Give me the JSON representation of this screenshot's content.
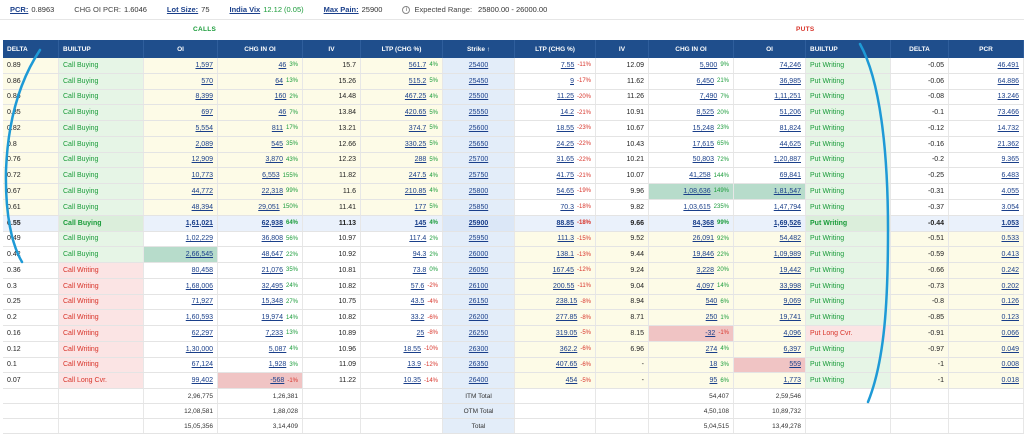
{
  "topbar": {
    "pcr_label": "PCR:",
    "pcr_value": "0.8963",
    "chg_oi_pcr_label": "CHG OI PCR:",
    "chg_oi_pcr_value": "1.6046",
    "lot_size_label": "Lot Size:",
    "lot_size_value": "75",
    "india_vix_label": "India Vix",
    "india_vix_value": "12.12",
    "india_vix_change": "(0.05)",
    "max_pain_label": "Max Pain:",
    "max_pain_value": "25900",
    "expected_range_label": "Expected Range:",
    "expected_range_value": "25800.00 - 26000.00"
  },
  "section_labels": {
    "calls": "CALLS",
    "puts": "PUTS"
  },
  "headers": {
    "delta": "DELTA",
    "builtup": "BUILTUP",
    "oi": "OI",
    "chg_in_oi": "CHG IN OI",
    "iv": "IV",
    "ltp": "LTP (CHG %)",
    "strike": "Strike ↑",
    "put_ltp": "LTP (CHG %)",
    "put_iv": "IV",
    "put_chg_in_oi": "CHG IN OI",
    "put_oi": "OI",
    "put_builtup": "BUILTUP",
    "put_delta": "DELTA",
    "pcr": "PCR"
  },
  "rows": [
    {
      "c_delta": "0.89",
      "c_build": "Call Buying",
      "c_oi": "1,597",
      "c_chg": "46",
      "c_chg_pct": "3%",
      "c_iv": "15.7",
      "c_ltp": "561.7",
      "c_ltp_pct": "4%",
      "strike": "25400",
      "p_ltp": "7.55",
      "p_ltp_pct": "-11%",
      "p_iv": "12.09",
      "p_chg": "5,900",
      "p_chg_pct": "9%",
      "p_oi": "74,246",
      "p_build": "Put Writing",
      "p_delta": "-0.05",
      "pcr": "46.491"
    },
    {
      "c_delta": "0.86",
      "c_build": "Call Buying",
      "c_oi": "570",
      "c_chg": "64",
      "c_chg_pct": "13%",
      "c_iv": "15.26",
      "c_ltp": "515.2",
      "c_ltp_pct": "5%",
      "strike": "25450",
      "p_ltp": "9",
      "p_ltp_pct": "-17%",
      "p_iv": "11.62",
      "p_chg": "6,450",
      "p_chg_pct": "21%",
      "p_oi": "36,985",
      "p_build": "Put Writing",
      "p_delta": "-0.06",
      "pcr": "64.886"
    },
    {
      "c_delta": "0.86",
      "c_build": "Call Buying",
      "c_oi": "8,399",
      "c_chg": "160",
      "c_chg_pct": "2%",
      "c_iv": "14.48",
      "c_ltp": "467.25",
      "c_ltp_pct": "4%",
      "strike": "25500",
      "p_ltp": "11.25",
      "p_ltp_pct": "-20%",
      "p_iv": "11.26",
      "p_chg": "7,490",
      "p_chg_pct": "7%",
      "p_oi": "1,11,251",
      "p_build": "Put Writing",
      "p_delta": "-0.08",
      "pcr": "13.246"
    },
    {
      "c_delta": "0.85",
      "c_build": "Call Buying",
      "c_oi": "697",
      "c_chg": "46",
      "c_chg_pct": "7%",
      "c_iv": "13.84",
      "c_ltp": "420.65",
      "c_ltp_pct": "5%",
      "strike": "25550",
      "p_ltp": "14.2",
      "p_ltp_pct": "-21%",
      "p_iv": "10.91",
      "p_chg": "8,525",
      "p_chg_pct": "20%",
      "p_oi": "51,206",
      "p_build": "Put Writing",
      "p_delta": "-0.1",
      "pcr": "73.466"
    },
    {
      "c_delta": "0.82",
      "c_build": "Call Buying",
      "c_oi": "5,554",
      "c_chg": "811",
      "c_chg_pct": "17%",
      "c_iv": "13.21",
      "c_ltp": "374.7",
      "c_ltp_pct": "5%",
      "strike": "25600",
      "p_ltp": "18.55",
      "p_ltp_pct": "-23%",
      "p_iv": "10.67",
      "p_chg": "15,248",
      "p_chg_pct": "23%",
      "p_oi": "81,824",
      "p_build": "Put Writing",
      "p_delta": "-0.12",
      "pcr": "14.732"
    },
    {
      "c_delta": "0.8",
      "c_build": "Call Buying",
      "c_oi": "2,089",
      "c_chg": "545",
      "c_chg_pct": "35%",
      "c_iv": "12.66",
      "c_ltp": "330.25",
      "c_ltp_pct": "5%",
      "strike": "25650",
      "p_ltp": "24.25",
      "p_ltp_pct": "-22%",
      "p_iv": "10.43",
      "p_chg": "17,615",
      "p_chg_pct": "65%",
      "p_oi": "44,625",
      "p_build": "Put Writing",
      "p_delta": "-0.16",
      "pcr": "21.362"
    },
    {
      "c_delta": "0.76",
      "c_build": "Call Buying",
      "c_oi": "12,909",
      "c_chg": "3,870",
      "c_chg_pct": "43%",
      "c_iv": "12.23",
      "c_ltp": "288",
      "c_ltp_pct": "5%",
      "strike": "25700",
      "p_ltp": "31.65",
      "p_ltp_pct": "-22%",
      "p_iv": "10.21",
      "p_chg": "50,803",
      "p_chg_pct": "72%",
      "p_oi": "1,20,887",
      "p_build": "Put Writing",
      "p_delta": "-0.2",
      "pcr": "9.365"
    },
    {
      "c_delta": "0.72",
      "c_build": "Call Buying",
      "c_oi": "10,773",
      "c_chg": "6,553",
      "c_chg_pct": "155%",
      "c_iv": "11.82",
      "c_ltp": "247.5",
      "c_ltp_pct": "4%",
      "strike": "25750",
      "p_ltp": "41.75",
      "p_ltp_pct": "-21%",
      "p_iv": "10.07",
      "p_chg": "41,258",
      "p_chg_pct": "144%",
      "p_oi": "69,841",
      "p_build": "Put Writing",
      "p_delta": "-0.25",
      "pcr": "6.483"
    },
    {
      "c_delta": "0.67",
      "c_build": "Call Buying",
      "c_oi": "44,772",
      "c_chg": "22,318",
      "c_chg_pct": "99%",
      "c_iv": "11.6",
      "c_ltp": "210.85",
      "c_ltp_pct": "4%",
      "strike": "25800",
      "p_ltp": "54.65",
      "p_ltp_pct": "-19%",
      "p_iv": "9.96",
      "p_chg": "1,08,636",
      "p_chg_pct": "149%",
      "p_oi": "1,81,547",
      "p_build": "Put Writing",
      "p_delta": "-0.31",
      "pcr": "4.055",
      "p_chg_hl": "green",
      "p_oi_hl": "green"
    },
    {
      "c_delta": "0.61",
      "c_build": "Call Buying",
      "c_oi": "48,394",
      "c_chg": "29,051",
      "c_chg_pct": "150%",
      "c_iv": "11.41",
      "c_ltp": "177",
      "c_ltp_pct": "5%",
      "strike": "25850",
      "p_ltp": "70.3",
      "p_ltp_pct": "-18%",
      "p_iv": "9.82",
      "p_chg": "1,03,615",
      "p_chg_pct": "235%",
      "p_oi": "1,47,794",
      "p_build": "Put Writing",
      "p_delta": "-0.37",
      "pcr": "3.054"
    },
    {
      "c_delta": "0.55",
      "c_build": "Call Buying",
      "c_oi": "1,61,021",
      "c_chg": "62,938",
      "c_chg_pct": "64%",
      "c_iv": "11.13",
      "c_ltp": "145",
      "c_ltp_pct": "4%",
      "strike": "25900",
      "p_ltp": "88.85",
      "p_ltp_pct": "-18%",
      "p_iv": "9.66",
      "p_chg": "84,368",
      "p_chg_pct": "99%",
      "p_oi": "1,69,526",
      "p_build": "Put Writing",
      "p_delta": "-0.44",
      "pcr": "1.053",
      "atm": true
    },
    {
      "c_delta": "0.49",
      "c_build": "Call Buying",
      "c_oi": "1,02,229",
      "c_chg": "36,808",
      "c_chg_pct": "56%",
      "c_iv": "10.97",
      "c_ltp": "117.4",
      "c_ltp_pct": "2%",
      "strike": "25950",
      "p_ltp": "111.3",
      "p_ltp_pct": "-15%",
      "p_iv": "9.52",
      "p_chg": "26,091",
      "p_chg_pct": "92%",
      "p_oi": "54,482",
      "p_build": "Put Writing",
      "p_delta": "-0.51",
      "pcr": "0.533"
    },
    {
      "c_delta": "0.42",
      "c_build": "Call Buying",
      "c_oi": "2,66,545",
      "c_chg": "48,647",
      "c_chg_pct": "22%",
      "c_iv": "10.92",
      "c_ltp": "94.3",
      "c_ltp_pct": "2%",
      "strike": "26000",
      "p_ltp": "138.1",
      "p_ltp_pct": "-13%",
      "p_iv": "9.44",
      "p_chg": "19,846",
      "p_chg_pct": "22%",
      "p_oi": "1,09,989",
      "p_build": "Put Writing",
      "p_delta": "-0.59",
      "pcr": "0.413",
      "c_oi_hl": "green"
    },
    {
      "c_delta": "0.36",
      "c_build": "Call Writing",
      "c_oi": "80,458",
      "c_chg": "21,076",
      "c_chg_pct": "35%",
      "c_iv": "10.81",
      "c_ltp": "73.8",
      "c_ltp_pct": "0%",
      "strike": "26050",
      "p_ltp": "167.45",
      "p_ltp_pct": "-12%",
      "p_iv": "9.24",
      "p_chg": "3,228",
      "p_chg_pct": "20%",
      "p_oi": "19,442",
      "p_build": "Put Writing",
      "p_delta": "-0.66",
      "pcr": "0.242"
    },
    {
      "c_delta": "0.3",
      "c_build": "Call Writing",
      "c_oi": "1,68,006",
      "c_chg": "32,495",
      "c_chg_pct": "24%",
      "c_iv": "10.82",
      "c_ltp": "57.6",
      "c_ltp_pct": "-2%",
      "strike": "26100",
      "p_ltp": "200.55",
      "p_ltp_pct": "-11%",
      "p_iv": "9.04",
      "p_chg": "4,097",
      "p_chg_pct": "14%",
      "p_oi": "33,998",
      "p_build": "Put Writing",
      "p_delta": "-0.73",
      "pcr": "0.202"
    },
    {
      "c_delta": "0.25",
      "c_build": "Call Writing",
      "c_oi": "71,927",
      "c_chg": "15,348",
      "c_chg_pct": "27%",
      "c_iv": "10.75",
      "c_ltp": "43.5",
      "c_ltp_pct": "-4%",
      "strike": "26150",
      "p_ltp": "238.15",
      "p_ltp_pct": "-8%",
      "p_iv": "8.94",
      "p_chg": "540",
      "p_chg_pct": "6%",
      "p_oi": "9,069",
      "p_build": "Put Writing",
      "p_delta": "-0.8",
      "pcr": "0.126"
    },
    {
      "c_delta": "0.2",
      "c_build": "Call Writing",
      "c_oi": "1,60,593",
      "c_chg": "19,974",
      "c_chg_pct": "14%",
      "c_iv": "10.82",
      "c_ltp": "33.2",
      "c_ltp_pct": "-6%",
      "strike": "26200",
      "p_ltp": "277.85",
      "p_ltp_pct": "-8%",
      "p_iv": "8.71",
      "p_chg": "250",
      "p_chg_pct": "1%",
      "p_oi": "19,741",
      "p_build": "Put Writing",
      "p_delta": "-0.85",
      "pcr": "0.123"
    },
    {
      "c_delta": "0.16",
      "c_build": "Call Writing",
      "c_oi": "62,297",
      "c_chg": "7,233",
      "c_chg_pct": "13%",
      "c_iv": "10.89",
      "c_ltp": "25",
      "c_ltp_pct": "-8%",
      "strike": "26250",
      "p_ltp": "319.05",
      "p_ltp_pct": "-5%",
      "p_iv": "8.15",
      "p_chg": "-32",
      "p_chg_pct": "-1%",
      "p_oi": "4,096",
      "p_build": "Put Long Cvr.",
      "p_delta": "-0.91",
      "pcr": "0.066",
      "p_chg_hl": "red"
    },
    {
      "c_delta": "0.12",
      "c_build": "Call Writing",
      "c_oi": "1,30,000",
      "c_chg": "5,087",
      "c_chg_pct": "4%",
      "c_iv": "10.96",
      "c_ltp": "18.55",
      "c_ltp_pct": "-10%",
      "strike": "26300",
      "p_ltp": "362.2",
      "p_ltp_pct": "-6%",
      "p_iv": "6.96",
      "p_chg": "274",
      "p_chg_pct": "4%",
      "p_oi": "6,397",
      "p_build": "Put Writing",
      "p_delta": "-0.97",
      "pcr": "0.049"
    },
    {
      "c_delta": "0.1",
      "c_build": "Call Writing",
      "c_oi": "67,124",
      "c_chg": "1,928",
      "c_chg_pct": "3%",
      "c_iv": "11.09",
      "c_ltp": "13.9",
      "c_ltp_pct": "-12%",
      "strike": "26350",
      "p_ltp": "407.65",
      "p_ltp_pct": "-6%",
      "p_iv": "-",
      "p_chg": "18",
      "p_chg_pct": "3%",
      "p_oi": "559",
      "p_build": "Put Writing",
      "p_delta": "-1",
      "pcr": "0.008",
      "p_oi_hl": "red"
    },
    {
      "c_delta": "0.07",
      "c_build": "Call Long Cvr.",
      "c_oi": "99,402",
      "c_chg": "-568",
      "c_chg_pct": "-1%",
      "c_iv": "11.22",
      "c_ltp": "10.35",
      "c_ltp_pct": "-14%",
      "strike": "26400",
      "p_ltp": "454",
      "p_ltp_pct": "-5%",
      "p_iv": "-",
      "p_chg": "95",
      "p_chg_pct": "6%",
      "p_oi": "1,773",
      "p_build": "Put Writing",
      "p_delta": "-1",
      "pcr": "0.018",
      "c_chg_hl": "red"
    }
  ],
  "totals": [
    {
      "c_oi": "2,96,775",
      "c_chg": "1,26,381",
      "label": "ITM Total",
      "p_chg": "54,407",
      "p_oi": "2,59,546"
    },
    {
      "c_oi": "12,08,581",
      "c_chg": "1,88,028",
      "label": "OTM Total",
      "p_chg": "4,50,108",
      "p_oi": "10,89,732"
    },
    {
      "c_oi": "15,05,356",
      "c_chg": "3,14,409",
      "label": "Total",
      "p_chg": "5,04,515",
      "p_oi": "13,49,278"
    }
  ]
}
